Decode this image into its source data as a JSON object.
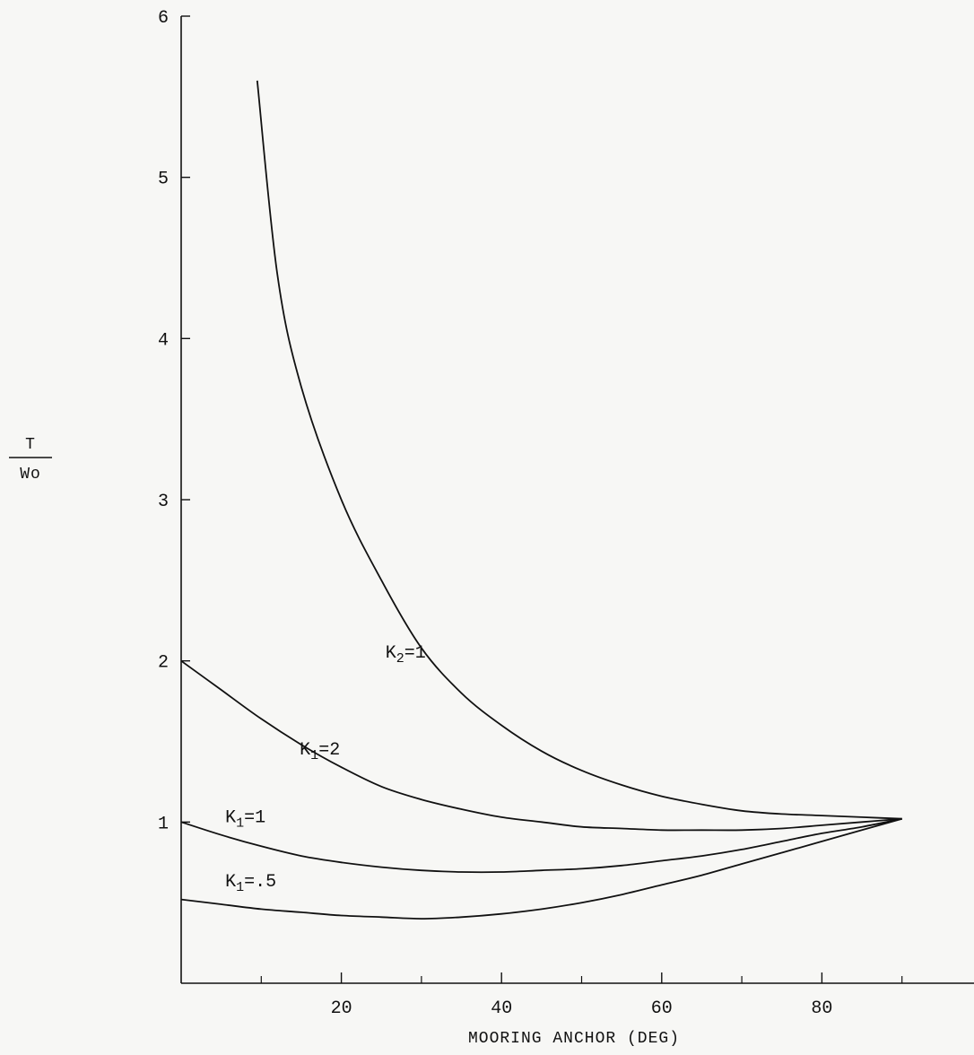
{
  "chart_data": {
    "type": "line",
    "title": "",
    "xlabel": "MOORING ANCHOR (DEG)",
    "ylabel_numerator": "T",
    "ylabel_denominator": "Wo",
    "xlim": [
      0,
      100
    ],
    "ylim": [
      0,
      6
    ],
    "x_ticks": [
      20,
      40,
      60,
      80
    ],
    "x_minor_ticks": [
      10,
      30,
      50,
      70,
      90
    ],
    "y_ticks": [
      1,
      2,
      3,
      4,
      5,
      6
    ],
    "grid": false,
    "series": [
      {
        "id": "k2-1",
        "label_main": "K",
        "label_sub": "2",
        "label_rest": "=1",
        "label_at": [
          25.5,
          2.02
        ],
        "x": [
          9.5,
          12,
          15,
          20,
          25,
          30,
          35,
          40,
          45,
          50,
          55,
          60,
          65,
          70,
          75,
          80,
          85,
          90
        ],
        "y": [
          5.6,
          4.4,
          3.7,
          3.0,
          2.5,
          2.08,
          1.8,
          1.6,
          1.44,
          1.32,
          1.23,
          1.16,
          1.11,
          1.07,
          1.05,
          1.04,
          1.03,
          1.02
        ]
      },
      {
        "id": "k1-2",
        "label_main": "K",
        "label_sub": "1",
        "label_rest": "=2",
        "label_at": [
          14.8,
          1.42
        ],
        "x": [
          0,
          5,
          10,
          15,
          20,
          25,
          30,
          35,
          40,
          45,
          50,
          55,
          60,
          65,
          70,
          75,
          80,
          85,
          90
        ],
        "y": [
          2.0,
          1.82,
          1.64,
          1.48,
          1.34,
          1.22,
          1.14,
          1.08,
          1.03,
          1.0,
          0.97,
          0.96,
          0.95,
          0.95,
          0.95,
          0.96,
          0.98,
          1.0,
          1.02
        ]
      },
      {
        "id": "k1-1",
        "label_main": "K",
        "label_sub": "1",
        "label_rest": "=1",
        "label_at": [
          5.5,
          1.0
        ],
        "x": [
          0,
          5,
          10,
          15,
          20,
          25,
          30,
          35,
          40,
          45,
          50,
          55,
          60,
          65,
          70,
          75,
          80,
          85,
          90
        ],
        "y": [
          1.0,
          0.92,
          0.85,
          0.79,
          0.75,
          0.72,
          0.7,
          0.69,
          0.69,
          0.7,
          0.71,
          0.73,
          0.76,
          0.79,
          0.83,
          0.88,
          0.93,
          0.97,
          1.02
        ]
      },
      {
        "id": "k1-05",
        "label_main": "K",
        "label_sub": "1",
        "label_rest": "=.5",
        "label_at": [
          5.5,
          0.6
        ],
        "x": [
          0,
          5,
          10,
          15,
          20,
          25,
          30,
          35,
          40,
          45,
          50,
          55,
          60,
          65,
          70,
          75,
          80,
          85,
          90
        ],
        "y": [
          0.52,
          0.49,
          0.46,
          0.44,
          0.42,
          0.41,
          0.4,
          0.41,
          0.43,
          0.46,
          0.5,
          0.55,
          0.61,
          0.67,
          0.74,
          0.81,
          0.88,
          0.95,
          1.02
        ]
      }
    ]
  }
}
